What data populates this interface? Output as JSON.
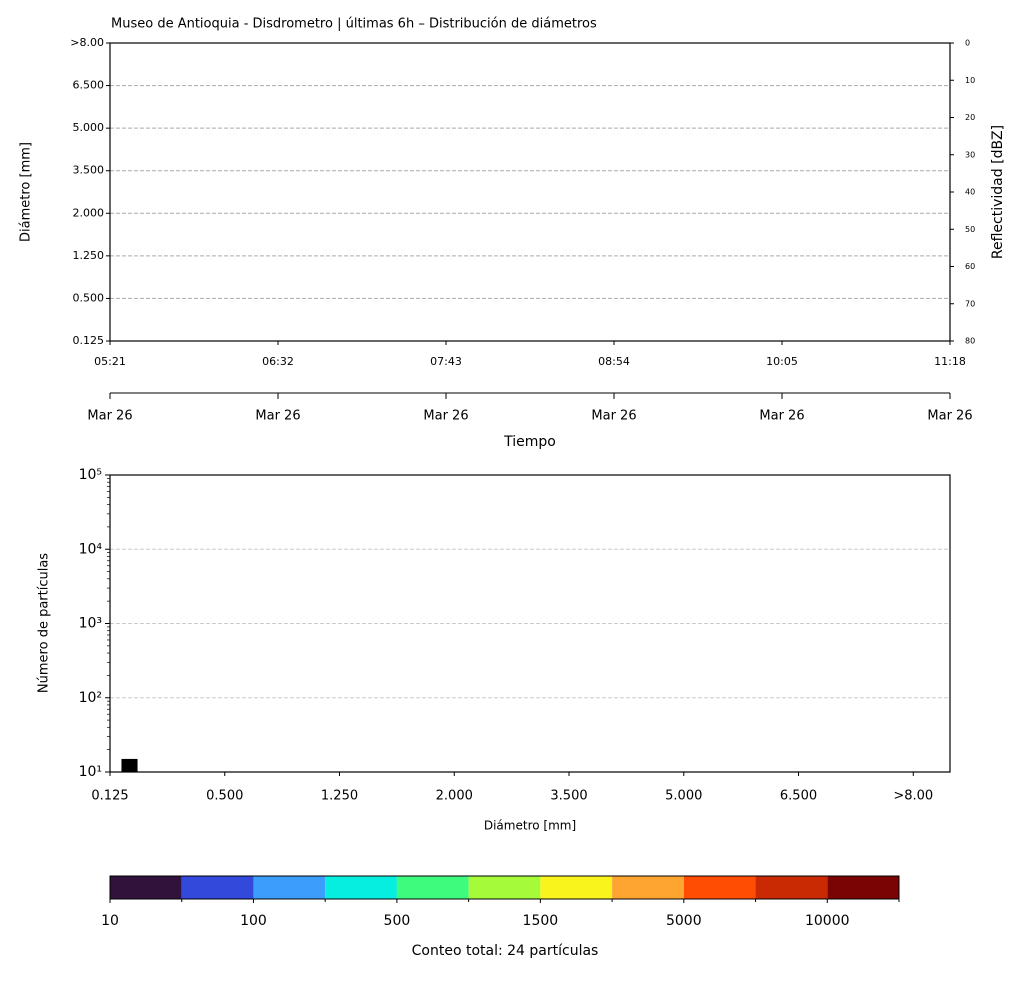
{
  "chart_data": [
    {
      "type": "heatmap",
      "title": "Museo de Antioquia - Disdrometro | últimas 6h – Distribución de diámetros",
      "y_label": "Diámetro [mm]",
      "ylim": [
        0,
        7
      ],
      "yticks": [
        {
          "value": 0,
          "label": "0.125"
        },
        {
          "value": 1,
          "label": "0.500"
        },
        {
          "value": 2,
          "label": "1.250"
        },
        {
          "value": 3,
          "label": "2.000"
        },
        {
          "value": 4,
          "label": "3.500"
        },
        {
          "value": 5,
          "label": "5.000"
        },
        {
          "value": 6,
          "label": "6.500"
        },
        {
          "value": 7,
          "label": ">8.00"
        }
      ],
      "xlim": [
        0,
        5
      ],
      "xticks": [
        {
          "value": 0,
          "label": "05:21"
        },
        {
          "value": 1,
          "label": "06:32"
        },
        {
          "value": 2,
          "label": "07:43"
        },
        {
          "value": 3,
          "label": "08:54"
        },
        {
          "value": 4,
          "label": "10:05"
        },
        {
          "value": 5,
          "label": "11:18"
        }
      ],
      "x2ticks": [
        {
          "value": 0,
          "label": "Mar 26"
        },
        {
          "value": 1,
          "label": "Mar 26"
        },
        {
          "value": 2,
          "label": "Mar 26"
        },
        {
          "value": 3,
          "label": "Mar 26"
        },
        {
          "value": 4,
          "label": "Mar 26"
        },
        {
          "value": 5,
          "label": "Mar 26"
        }
      ],
      "x_label": "Tiempo",
      "y2_label": "Reflectividad [dBZ]",
      "y2lim": [
        80,
        0
      ],
      "y2ticks": [
        0,
        10,
        20,
        30,
        40,
        50,
        60,
        70,
        80
      ],
      "grid": true
    },
    {
      "type": "histogram",
      "bins": [
        0.1,
        0.24
      ],
      "values": [
        15
      ],
      "color": "#000000",
      "xlim": [
        0,
        7.32
      ],
      "xticks": [
        {
          "value": 0,
          "label": "0.125"
        },
        {
          "value": 1,
          "label": "0.500"
        },
        {
          "value": 2,
          "label": "1.250"
        },
        {
          "value": 3,
          "label": "2.000"
        },
        {
          "value": 4,
          "label": "3.500"
        },
        {
          "value": 5,
          "label": "5.000"
        },
        {
          "value": 6,
          "label": "6.500"
        },
        {
          "value": 7,
          "label": ">8.00"
        }
      ],
      "ylim": [
        10,
        100000
      ],
      "log_y": true,
      "yticks": [
        {
          "value": 10,
          "label": "10¹"
        },
        {
          "value": 100,
          "label": "10²"
        },
        {
          "value": 1000,
          "label": "10³"
        },
        {
          "value": 10000,
          "label": "10⁴"
        },
        {
          "value": 100000,
          "label": "10⁵"
        }
      ],
      "x_label": "Diámetro [mm]",
      "y_label": "Número de partículas",
      "grid": true
    },
    {
      "type": "colorbar",
      "colors": [
        "#30123b",
        "#3249dc",
        "#3c9dfc",
        "#06eee0",
        "#3efa7d",
        "#a5fb3a",
        "#f8f41c",
        "#fea531",
        "#ff4e03",
        "#c92903",
        "#7a0403"
      ],
      "lim": [
        0,
        11
      ],
      "ticks": [
        {
          "value": 0,
          "label": "10"
        },
        {
          "value": 2,
          "label": "100"
        },
        {
          "value": 4,
          "label": "500"
        },
        {
          "value": 6,
          "label": "1500"
        },
        {
          "value": 8,
          "label": "5000"
        },
        {
          "value": 10,
          "label": "10000"
        }
      ],
      "minor_ticks": [
        1,
        3,
        5,
        7,
        9,
        11
      ],
      "label": "Conteo total: 24 partículas"
    }
  ]
}
